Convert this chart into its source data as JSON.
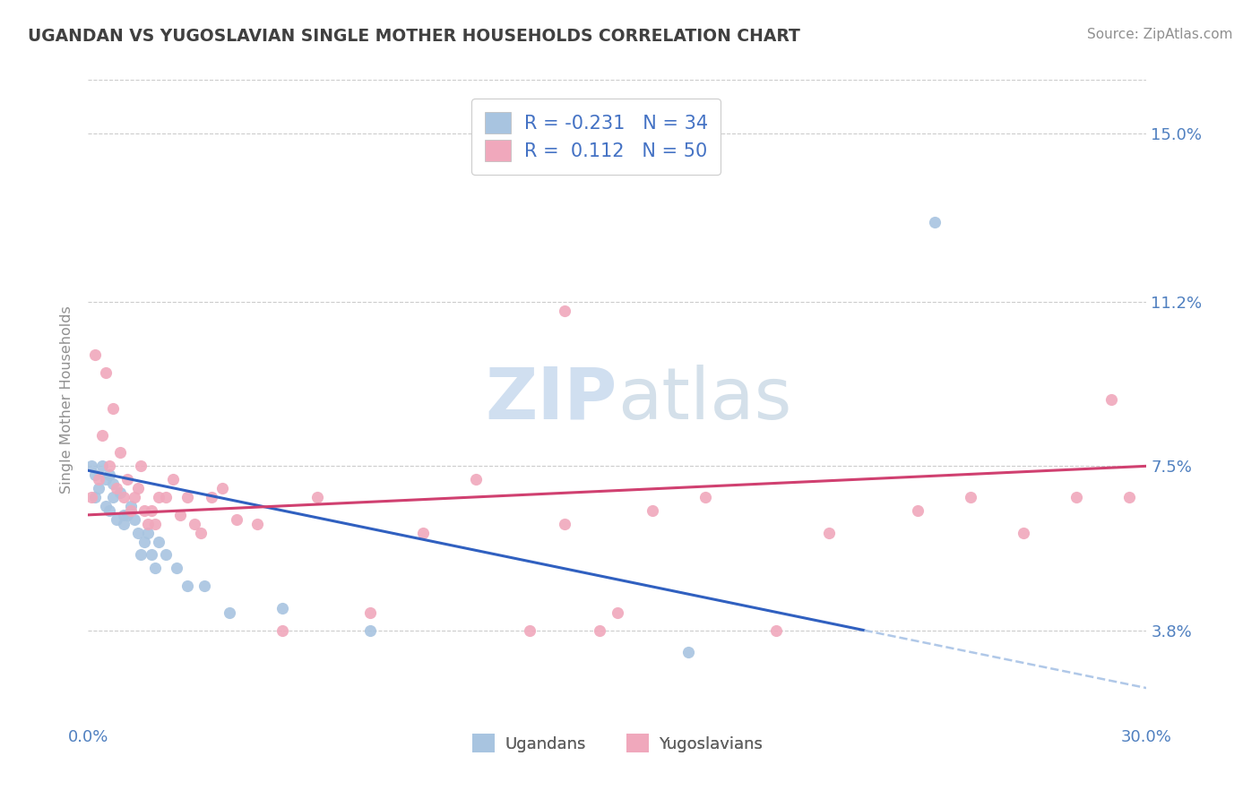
{
  "title": "UGANDAN VS YUGOSLAVIAN SINGLE MOTHER HOUSEHOLDS CORRELATION CHART",
  "source_text": "Source: ZipAtlas.com",
  "ylabel": "Single Mother Households",
  "xlim": [
    0.0,
    0.3
  ],
  "ylim": [
    0.018,
    0.162
  ],
  "xtick_positions": [
    0.0,
    0.05,
    0.1,
    0.15,
    0.2,
    0.25,
    0.3
  ],
  "xtick_labels": [
    "0.0%",
    "",
    "",
    "",
    "",
    "",
    "30.0%"
  ],
  "ytick_positions": [
    0.038,
    0.075,
    0.112,
    0.15
  ],
  "ytick_labels": [
    "3.8%",
    "7.5%",
    "11.2%",
    "15.0%"
  ],
  "legend_line1": "R = -0.231   N = 34",
  "legend_line2": "R =  0.112   N = 50",
  "ugandan_color": "#a8c4e0",
  "yugoslav_color": "#f0a8bc",
  "trend_ugandan_color": "#3060c0",
  "trend_yugoslav_color": "#d04070",
  "trend_dashed_color": "#b0c8e8",
  "watermark_color": "#d0dff0",
  "title_color": "#404040",
  "axis_tick_color": "#5080c0",
  "ylabel_color": "#909090",
  "source_color": "#909090",
  "grid_color": "#cccccc",
  "ugandan_x": [
    0.001,
    0.002,
    0.002,
    0.003,
    0.004,
    0.005,
    0.005,
    0.006,
    0.006,
    0.007,
    0.007,
    0.008,
    0.009,
    0.01,
    0.01,
    0.011,
    0.012,
    0.013,
    0.014,
    0.015,
    0.016,
    0.017,
    0.018,
    0.019,
    0.02,
    0.022,
    0.025,
    0.028,
    0.033,
    0.04,
    0.055,
    0.08,
    0.17,
    0.24
  ],
  "ugandan_y": [
    0.075,
    0.073,
    0.068,
    0.07,
    0.075,
    0.072,
    0.066,
    0.073,
    0.065,
    0.071,
    0.068,
    0.063,
    0.069,
    0.064,
    0.062,
    0.064,
    0.066,
    0.063,
    0.06,
    0.055,
    0.058,
    0.06,
    0.055,
    0.052,
    0.058,
    0.055,
    0.052,
    0.048,
    0.048,
    0.042,
    0.043,
    0.038,
    0.033,
    0.13
  ],
  "yugoslav_x": [
    0.001,
    0.002,
    0.003,
    0.004,
    0.005,
    0.006,
    0.007,
    0.008,
    0.009,
    0.01,
    0.011,
    0.012,
    0.013,
    0.014,
    0.015,
    0.016,
    0.017,
    0.018,
    0.019,
    0.02,
    0.022,
    0.024,
    0.026,
    0.028,
    0.03,
    0.032,
    0.035,
    0.038,
    0.042,
    0.048,
    0.055,
    0.065,
    0.08,
    0.095,
    0.11,
    0.125,
    0.135,
    0.145,
    0.16,
    0.175,
    0.195,
    0.21,
    0.235,
    0.25,
    0.265,
    0.28,
    0.29,
    0.295,
    0.135,
    0.15
  ],
  "yugoslav_y": [
    0.068,
    0.1,
    0.072,
    0.082,
    0.096,
    0.075,
    0.088,
    0.07,
    0.078,
    0.068,
    0.072,
    0.065,
    0.068,
    0.07,
    0.075,
    0.065,
    0.062,
    0.065,
    0.062,
    0.068,
    0.068,
    0.072,
    0.064,
    0.068,
    0.062,
    0.06,
    0.068,
    0.07,
    0.063,
    0.062,
    0.038,
    0.068,
    0.042,
    0.06,
    0.072,
    0.038,
    0.062,
    0.038,
    0.065,
    0.068,
    0.038,
    0.06,
    0.065,
    0.068,
    0.06,
    0.068,
    0.09,
    0.068,
    0.11,
    0.042
  ],
  "trend_u_x0": 0.0,
  "trend_u_y0": 0.074,
  "trend_u_x1": 0.22,
  "trend_u_y1": 0.038,
  "trend_u_dash_x1": 0.3,
  "trend_u_dash_y1": 0.025,
  "trend_y_x0": 0.0,
  "trend_y_y0": 0.064,
  "trend_y_x1": 0.3,
  "trend_y_y1": 0.075
}
